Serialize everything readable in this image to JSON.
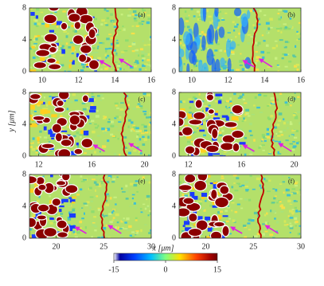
{
  "chart_data": [
    {
      "type": "heatmap",
      "label": "(a)",
      "xlim": [
        9.3,
        16
      ],
      "xticks": [
        10,
        12,
        14,
        16
      ],
      "ylim": [
        0,
        8
      ],
      "yticks": [
        0,
        4,
        8
      ]
    },
    {
      "type": "heatmap",
      "label": "(b)",
      "xlim": [
        9.3,
        16
      ],
      "xticks": [
        10,
        12,
        14,
        16
      ],
      "ylim": [
        0,
        8
      ],
      "yticks": [
        0,
        4,
        8
      ]
    },
    {
      "type": "heatmap",
      "label": "(c)",
      "xlim": [
        11.3,
        20.5
      ],
      "xticks": [
        12,
        16,
        20
      ],
      "ylim": [
        0,
        8
      ],
      "yticks": [
        0,
        4,
        8
      ]
    },
    {
      "type": "heatmap",
      "label": "(d)",
      "xlim": [
        11.3,
        20.5
      ],
      "xticks": [
        12,
        16,
        20
      ],
      "ylim": [
        0,
        8
      ],
      "yticks": [
        0,
        4,
        8
      ]
    },
    {
      "type": "heatmap",
      "label": "(e)",
      "xlim": [
        17.2,
        30
      ],
      "xticks": [
        20,
        25,
        30
      ],
      "ylim": [
        0,
        8
      ],
      "yticks": [
        0,
        4,
        8
      ]
    },
    {
      "type": "heatmap",
      "label": "(f)",
      "xlim": [
        17.2,
        30
      ],
      "xticks": [
        20,
        25,
        30
      ],
      "ylim": [
        0,
        8
      ],
      "yticks": [
        0,
        4,
        8
      ]
    }
  ],
  "x_label": "x [μm]",
  "y_label": "y [μm]",
  "colorbar": {
    "lim": [
      -15,
      15
    ],
    "ticks": [
      -15,
      0,
      15
    ]
  }
}
